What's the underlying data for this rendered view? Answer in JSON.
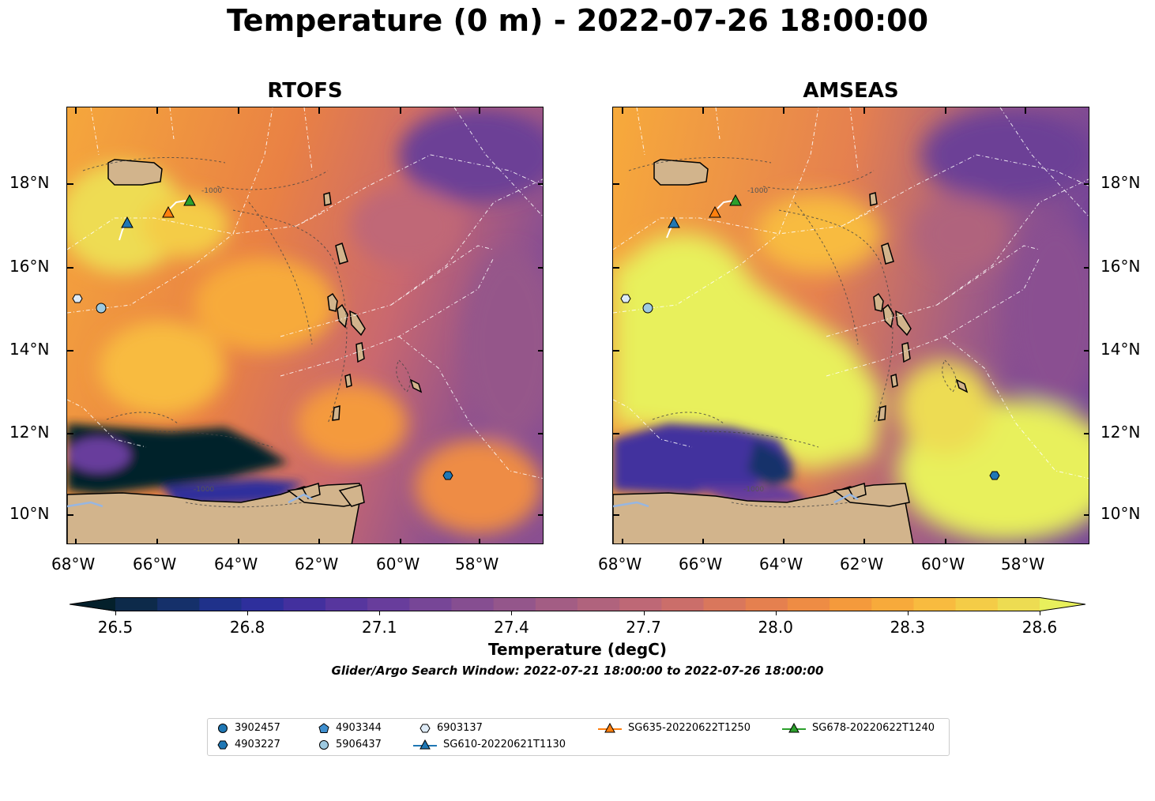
{
  "title": "Temperature (0 m) - 2022-07-26 18:00:00",
  "panels": [
    {
      "title": "RTOFS"
    },
    {
      "title": "AMSEAS"
    }
  ],
  "lat_labels": [
    "18°N",
    "16°N",
    "14°N",
    "12°N",
    "10°N"
  ],
  "lon_labels": [
    "68°W",
    "66°W",
    "64°W",
    "62°W",
    "60°W",
    "58°W"
  ],
  "colorbar": {
    "ticks": [
      "26.5",
      "26.8",
      "27.1",
      "27.4",
      "27.7",
      "28.0",
      "28.3",
      "28.6"
    ],
    "label": "Temperature (degC)",
    "range": [
      26.4,
      28.7
    ],
    "colors": [
      "#04202b",
      "#0d2a4a",
      "#15306a",
      "#1f318a",
      "#2e2f9c",
      "#43309e",
      "#57369e",
      "#683d9c",
      "#774697",
      "#864e91",
      "#94568b",
      "#a35d84",
      "#b0637d",
      "#be6876",
      "#cb6e6a",
      "#d9775c",
      "#e5804f",
      "#ee8c44",
      "#f49a3c",
      "#f7aa3b",
      "#f8bb3f",
      "#f4cc47",
      "#eddc52",
      "#e8f05c"
    ],
    "extend": "both"
  },
  "search_window": "Glider/Argo Search Window: 2022-07-21 18:00:00 to 2022-07-26 18:00:00",
  "contour_label": "-1000",
  "legend": [
    {
      "label": "3902457",
      "marker": "circle",
      "color": "#1f77b4"
    },
    {
      "label": "4903227",
      "marker": "hexagon",
      "color": "#1f77b4"
    },
    {
      "label": "4903344",
      "marker": "pentagon",
      "color": "#3f8fcf"
    },
    {
      "label": "5906437",
      "marker": "circle",
      "color": "#9ecae1"
    },
    {
      "label": "6903137",
      "marker": "hexagon",
      "color": "#deebf7"
    },
    {
      "label": "SG610-20220621T1130",
      "marker": "triangle-line",
      "color": "#1f77b4"
    },
    {
      "label": "SG635-20220622T1250",
      "marker": "triangle-line",
      "color": "#ff7f0e"
    },
    {
      "label": "SG678-20220622T1240",
      "marker": "triangle-line",
      "color": "#2ca02c"
    }
  ],
  "map_colors": {
    "land": "#d2b48c",
    "river": "#97b6e1",
    "eez": "#ffffff",
    "contour": "#444444"
  },
  "platforms": [
    {
      "id": "6903137",
      "lon": -67.8,
      "lat": 15.25
    },
    {
      "id": "5906437",
      "lon": -67.3,
      "lat": 15.0
    },
    {
      "id": "4903227",
      "lon": -58.6,
      "lat": 10.95
    },
    {
      "id": "SG610-20220621T1130",
      "lon": -66.5,
      "lat": 17.05
    },
    {
      "id": "SG635-20220622T1250",
      "lon": -65.5,
      "lat": 17.3
    },
    {
      "id": "SG678-20220622T1240",
      "lon": -65.0,
      "lat": 17.6
    }
  ]
}
